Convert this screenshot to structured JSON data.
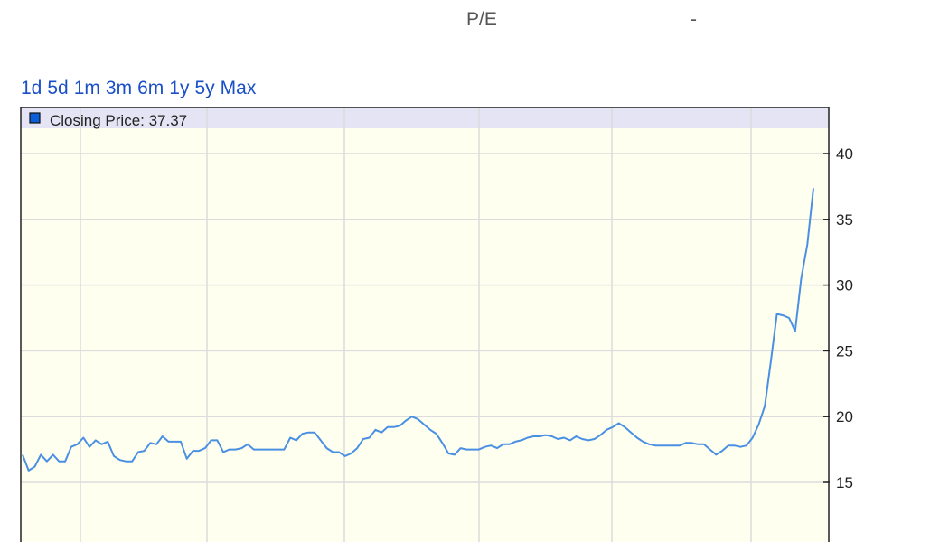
{
  "stats": {
    "pe_label": "P/E",
    "pe_value": "-"
  },
  "ranges": [
    "1d",
    "5d",
    "1m",
    "3m",
    "6m",
    "1y",
    "5y",
    "Max"
  ],
  "colors": {
    "line": "#4a90e2",
    "plot_bg": "#fffff0",
    "legend_bg": "#e4e4f4",
    "legend_marker": "#0b5fd6",
    "range_links": "#1a4fc8"
  },
  "chart_data": {
    "type": "line",
    "legend": "Closing Price: 37.37",
    "legend_placement": "top-left",
    "yaxis_side": "right",
    "yticks": [
      15,
      20,
      25,
      30,
      35,
      40
    ],
    "ylim": [
      10,
      43.5
    ],
    "grid": true,
    "series": [
      {
        "values": [
          17.1,
          15.9,
          16.2,
          17.1,
          16.6,
          17.1,
          16.6,
          16.6,
          17.7,
          17.9,
          18.4,
          17.7,
          18.2,
          17.9,
          18.1,
          17.0,
          16.7,
          16.6,
          16.6,
          17.3,
          17.4,
          18.0,
          17.9,
          18.5,
          18.1,
          18.1,
          18.1,
          16.8,
          17.4,
          17.4,
          17.6,
          18.2,
          18.2,
          17.3,
          17.5,
          17.5,
          17.6,
          17.9,
          17.5,
          17.5,
          17.5,
          17.5,
          17.5,
          17.5,
          18.4,
          18.2,
          18.7,
          18.8,
          18.8,
          18.2,
          17.6,
          17.3,
          17.3,
          17.0,
          17.2,
          17.6,
          18.3,
          18.4,
          19.0,
          18.8,
          19.2,
          19.2,
          19.3,
          19.7,
          20.0,
          19.8,
          19.4,
          19.0,
          18.7,
          18.0,
          17.2,
          17.1,
          17.6,
          17.5,
          17.5,
          17.5,
          17.7,
          17.8,
          17.6,
          17.9,
          17.9,
          18.1,
          18.2,
          18.4,
          18.5,
          18.5,
          18.6,
          18.5,
          18.3,
          18.4,
          18.2,
          18.5,
          18.3,
          18.2,
          18.3,
          18.6,
          19.0,
          19.2,
          19.5,
          19.2,
          18.8,
          18.4,
          18.1,
          17.9,
          17.8,
          17.8,
          17.8,
          17.8,
          17.8,
          18.0,
          18.0,
          17.9,
          17.9,
          17.5,
          17.1,
          17.4,
          17.8,
          17.8,
          17.7,
          17.8,
          18.4,
          19.4,
          20.8,
          24.2,
          27.8,
          27.7,
          27.5,
          26.5,
          30.5,
          33.1,
          37.37
        ]
      }
    ]
  }
}
